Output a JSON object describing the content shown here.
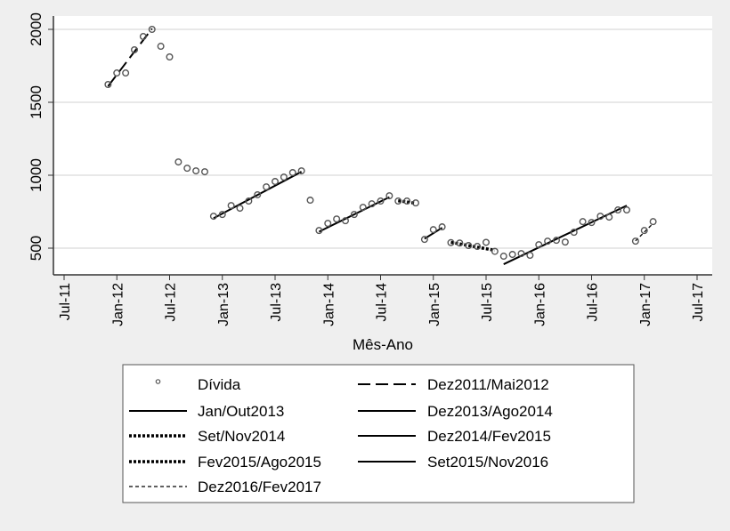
{
  "chart_data": {
    "type": "scatter",
    "title": "",
    "xlabel": "Mês-Ano",
    "ylabel": "",
    "ylim": [
      317,
      2090
    ],
    "xlim": [
      "2011-07",
      "2017-07"
    ],
    "yticks": [
      500,
      1000,
      1500,
      2000
    ],
    "ytick_labels": [
      "500",
      "1000",
      "1500",
      "2000"
    ],
    "xticks": [
      "2011-07",
      "2012-01",
      "2012-07",
      "2013-01",
      "2013-07",
      "2014-01",
      "2014-07",
      "2015-01",
      "2015-07",
      "2016-01",
      "2016-07",
      "2017-01",
      "2017-07"
    ],
    "xtick_labels": [
      "Jul-11",
      "Jan-12",
      "Jul-12",
      "Jan-13",
      "Jul-13",
      "Jan-14",
      "Jul-14",
      "Jan-15",
      "Jul-15",
      "Jan-16",
      "Jul-16",
      "Jan-17",
      "Jul-17"
    ],
    "grid": "horizontal",
    "legend_placement": "bottom",
    "scatter": {
      "name": "Dívida",
      "color": "#555555",
      "points": [
        [
          "2011-12",
          1622
        ],
        [
          "2012-01",
          1701
        ],
        [
          "2012-02",
          1701
        ],
        [
          "2012-03",
          1860
        ],
        [
          "2012-04",
          1951
        ],
        [
          "2012-05",
          2000
        ],
        [
          "2012-06",
          1884
        ],
        [
          "2012-07",
          1811
        ],
        [
          "2012-08",
          1091
        ],
        [
          "2012-09",
          1048
        ],
        [
          "2012-10",
          1030
        ],
        [
          "2012-11",
          1024
        ],
        [
          "2012-12",
          719
        ],
        [
          "2013-01",
          731
        ],
        [
          "2013-02",
          792
        ],
        [
          "2013-03",
          774
        ],
        [
          "2013-04",
          823
        ],
        [
          "2013-05",
          866
        ],
        [
          "2013-06",
          920
        ],
        [
          "2013-07",
          957
        ],
        [
          "2013-08",
          987
        ],
        [
          "2013-09",
          1018
        ],
        [
          "2013-10",
          1030
        ],
        [
          "2013-11",
          829
        ],
        [
          "2013-12",
          621
        ],
        [
          "2014-01",
          670
        ],
        [
          "2014-02",
          700
        ],
        [
          "2014-03",
          688
        ],
        [
          "2014-04",
          731
        ],
        [
          "2014-05",
          780
        ],
        [
          "2014-06",
          804
        ],
        [
          "2014-07",
          823
        ],
        [
          "2014-08",
          859
        ],
        [
          "2014-09",
          823
        ],
        [
          "2014-10",
          823
        ],
        [
          "2014-11",
          810
        ],
        [
          "2014-12",
          560
        ],
        [
          "2015-01",
          627
        ],
        [
          "2015-02",
          646
        ],
        [
          "2015-03",
          538
        ],
        [
          "2015-04",
          535
        ],
        [
          "2015-05",
          518
        ],
        [
          "2015-06",
          512
        ],
        [
          "2015-07",
          540
        ],
        [
          "2015-08",
          478
        ],
        [
          "2015-09",
          445
        ],
        [
          "2015-10",
          457
        ],
        [
          "2015-11",
          463
        ],
        [
          "2015-12",
          451
        ],
        [
          "2016-01",
          524
        ],
        [
          "2016-02",
          548
        ],
        [
          "2016-03",
          554
        ],
        [
          "2016-04",
          542
        ],
        [
          "2016-05",
          609
        ],
        [
          "2016-06",
          682
        ],
        [
          "2016-07",
          676
        ],
        [
          "2016-08",
          719
        ],
        [
          "2016-09",
          713
        ],
        [
          "2016-10",
          762
        ],
        [
          "2016-11",
          762
        ],
        [
          "2016-12",
          548
        ],
        [
          "2017-01",
          621
        ],
        [
          "2017-02",
          682
        ]
      ]
    },
    "series": [
      {
        "name": "Dez2011/Mai2012",
        "style": "longdash",
        "x": [
          "2011-12",
          "2012-05"
        ],
        "y": [
          1610,
          2005
        ]
      },
      {
        "name": "Jan/Out2013",
        "style": "solid",
        "x": [
          "2012-12",
          "2013-10"
        ],
        "y": [
          705,
          1024
        ]
      },
      {
        "name": "Set/Nov2014",
        "style": "dot",
        "x": [
          "2014-09",
          "2014-11"
        ],
        "y": [
          825,
          808
        ]
      },
      {
        "name": "Fev2015/Ago2015",
        "style": "dot",
        "x": [
          "2015-03",
          "2015-08"
        ],
        "y": [
          540,
          485
        ]
      },
      {
        "name": "Dez2016/Fev2017",
        "style": "shortdash",
        "x": [
          "2016-12",
          "2017-02"
        ],
        "y": [
          550,
          670
        ]
      },
      {
        "name": "Dez2013/Ago2014",
        "style": "solid",
        "x": [
          "2013-12",
          "2014-08"
        ],
        "y": [
          613,
          850
        ]
      },
      {
        "name": "Dez2014/Fev2015",
        "style": "solid",
        "x": [
          "2014-12",
          "2015-02"
        ],
        "y": [
          565,
          640
        ]
      },
      {
        "name": "Set2015/Nov2016",
        "style": "solid",
        "x": [
          "2015-09",
          "2016-11"
        ],
        "y": [
          390,
          792
        ]
      }
    ],
    "legend": {
      "left": [
        "Dívida",
        "Jan/Out2013",
        "Set/Nov2014",
        "Fev2015/Ago2015",
        "Dez2016/Fev2017"
      ],
      "right": [
        "Dez2011/Mai2012",
        "Dez2013/Ago2014",
        "Dez2014/Fev2015",
        "Set2015/Nov2016"
      ]
    }
  }
}
